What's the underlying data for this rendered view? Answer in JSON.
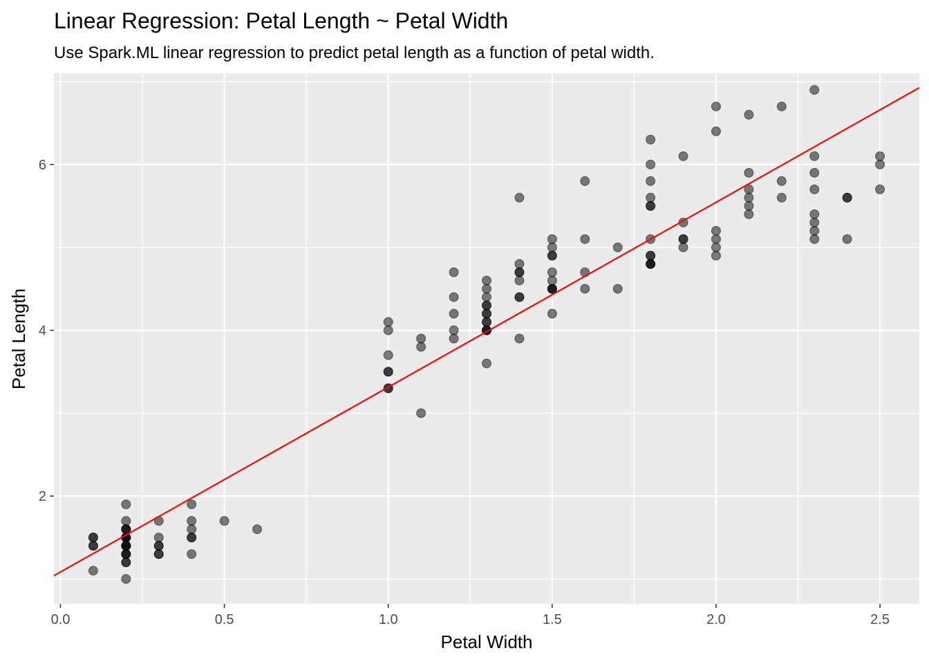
{
  "chart_data": {
    "type": "scatter",
    "title": "Linear Regression: Petal Length ~ Petal Width",
    "subtitle": "Use Spark.ML linear regression to predict petal length as a function of petal width.",
    "xlabel": "Petal Width",
    "ylabel": "Petal Length",
    "xlim": [
      -0.02,
      2.62
    ],
    "ylim": [
      0.7,
      7.1
    ],
    "x_ticks": [
      0.0,
      0.5,
      1.0,
      1.5,
      2.0,
      2.5
    ],
    "x_tick_labels": [
      "0.0",
      "0.5",
      "1.0",
      "1.5",
      "2.0",
      "2.5"
    ],
    "y_ticks": [
      2,
      4,
      6
    ],
    "y_tick_labels": [
      "2",
      "4",
      "6"
    ],
    "grid": true,
    "panel_color": "#ebebeb",
    "point_color": "#000000",
    "point_opacity": 0.5,
    "line_color": "#ff0000",
    "regression": {
      "intercept": 1.084,
      "slope": 2.23
    },
    "points": [
      [
        0.1,
        1.1
      ],
      [
        0.1,
        1.4
      ],
      [
        0.1,
        1.4
      ],
      [
        0.1,
        1.5
      ],
      [
        0.1,
        1.5
      ],
      [
        0.2,
        1.0
      ],
      [
        0.2,
        1.2
      ],
      [
        0.2,
        1.2
      ],
      [
        0.2,
        1.3
      ],
      [
        0.2,
        1.3
      ],
      [
        0.2,
        1.3
      ],
      [
        0.2,
        1.4
      ],
      [
        0.2,
        1.4
      ],
      [
        0.2,
        1.4
      ],
      [
        0.2,
        1.4
      ],
      [
        0.2,
        1.5
      ],
      [
        0.2,
        1.5
      ],
      [
        0.2,
        1.5
      ],
      [
        0.2,
        1.5
      ],
      [
        0.2,
        1.6
      ],
      [
        0.2,
        1.6
      ],
      [
        0.2,
        1.6
      ],
      [
        0.2,
        1.7
      ],
      [
        0.2,
        1.9
      ],
      [
        0.3,
        1.3
      ],
      [
        0.3,
        1.3
      ],
      [
        0.3,
        1.4
      ],
      [
        0.3,
        1.4
      ],
      [
        0.3,
        1.5
      ],
      [
        0.3,
        1.7
      ],
      [
        0.4,
        1.3
      ],
      [
        0.4,
        1.5
      ],
      [
        0.4,
        1.5
      ],
      [
        0.4,
        1.6
      ],
      [
        0.4,
        1.7
      ],
      [
        0.4,
        1.9
      ],
      [
        0.5,
        1.7
      ],
      [
        0.6,
        1.6
      ],
      [
        1.0,
        3.3
      ],
      [
        1.0,
        3.3
      ],
      [
        1.0,
        3.5
      ],
      [
        1.0,
        3.5
      ],
      [
        1.0,
        3.7
      ],
      [
        1.0,
        4.0
      ],
      [
        1.0,
        4.1
      ],
      [
        1.1,
        3.0
      ],
      [
        1.1,
        3.8
      ],
      [
        1.1,
        3.9
      ],
      [
        1.2,
        3.9
      ],
      [
        1.2,
        4.0
      ],
      [
        1.2,
        4.2
      ],
      [
        1.2,
        4.4
      ],
      [
        1.2,
        4.7
      ],
      [
        1.3,
        3.6
      ],
      [
        1.3,
        4.0
      ],
      [
        1.3,
        4.0
      ],
      [
        1.3,
        4.0
      ],
      [
        1.3,
        4.1
      ],
      [
        1.3,
        4.1
      ],
      [
        1.3,
        4.2
      ],
      [
        1.3,
        4.2
      ],
      [
        1.3,
        4.3
      ],
      [
        1.3,
        4.3
      ],
      [
        1.3,
        4.4
      ],
      [
        1.3,
        4.5
      ],
      [
        1.3,
        4.6
      ],
      [
        1.4,
        3.9
      ],
      [
        1.4,
        4.4
      ],
      [
        1.4,
        4.4
      ],
      [
        1.4,
        4.6
      ],
      [
        1.4,
        4.7
      ],
      [
        1.4,
        4.7
      ],
      [
        1.4,
        4.8
      ],
      [
        1.4,
        5.6
      ],
      [
        1.5,
        4.2
      ],
      [
        1.5,
        4.5
      ],
      [
        1.5,
        4.5
      ],
      [
        1.5,
        4.5
      ],
      [
        1.5,
        4.6
      ],
      [
        1.5,
        4.7
      ],
      [
        1.5,
        4.9
      ],
      [
        1.5,
        4.9
      ],
      [
        1.5,
        5.0
      ],
      [
        1.5,
        5.1
      ],
      [
        1.6,
        4.5
      ],
      [
        1.6,
        4.7
      ],
      [
        1.6,
        5.1
      ],
      [
        1.6,
        5.8
      ],
      [
        1.7,
        4.5
      ],
      [
        1.7,
        5.0
      ],
      [
        1.8,
        4.8
      ],
      [
        1.8,
        4.8
      ],
      [
        1.8,
        4.8
      ],
      [
        1.8,
        4.9
      ],
      [
        1.8,
        4.9
      ],
      [
        1.8,
        5.1
      ],
      [
        1.8,
        5.5
      ],
      [
        1.8,
        5.5
      ],
      [
        1.8,
        5.6
      ],
      [
        1.8,
        5.8
      ],
      [
        1.8,
        6.0
      ],
      [
        1.8,
        6.3
      ],
      [
        1.9,
        5.0
      ],
      [
        1.9,
        5.1
      ],
      [
        1.9,
        5.1
      ],
      [
        1.9,
        5.3
      ],
      [
        1.9,
        6.1
      ],
      [
        2.0,
        4.9
      ],
      [
        2.0,
        5.0
      ],
      [
        2.0,
        5.1
      ],
      [
        2.0,
        5.2
      ],
      [
        2.0,
        6.4
      ],
      [
        2.0,
        6.7
      ],
      [
        2.1,
        5.4
      ],
      [
        2.1,
        5.5
      ],
      [
        2.1,
        5.6
      ],
      [
        2.1,
        5.7
      ],
      [
        2.1,
        5.9
      ],
      [
        2.1,
        6.6
      ],
      [
        2.2,
        5.6
      ],
      [
        2.2,
        5.8
      ],
      [
        2.2,
        6.7
      ],
      [
        2.3,
        5.1
      ],
      [
        2.3,
        5.2
      ],
      [
        2.3,
        5.3
      ],
      [
        2.3,
        5.4
      ],
      [
        2.3,
        5.7
      ],
      [
        2.3,
        5.9
      ],
      [
        2.3,
        6.1
      ],
      [
        2.3,
        6.9
      ],
      [
        2.4,
        5.1
      ],
      [
        2.4,
        5.6
      ],
      [
        2.4,
        5.6
      ],
      [
        2.5,
        5.7
      ],
      [
        2.5,
        6.0
      ],
      [
        2.5,
        6.1
      ]
    ]
  }
}
